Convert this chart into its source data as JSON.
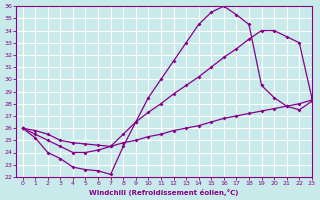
{
  "xlabel": "Windchill (Refroidissement éolien,°C)",
  "xlim": [
    -0.5,
    23
  ],
  "ylim": [
    22,
    36
  ],
  "xticks": [
    0,
    1,
    2,
    3,
    4,
    5,
    6,
    7,
    8,
    9,
    10,
    11,
    12,
    13,
    14,
    15,
    16,
    17,
    18,
    19,
    20,
    21,
    22,
    23
  ],
  "yticks": [
    22,
    23,
    24,
    25,
    26,
    27,
    28,
    29,
    30,
    31,
    32,
    33,
    34,
    35,
    36
  ],
  "background_color": "#c8eaea",
  "grid_color": "#ffffff",
  "line_color": "#880088",
  "line1_x": [
    0,
    1,
    2,
    3,
    4,
    5,
    6,
    7,
    8,
    9,
    10,
    11,
    12,
    13,
    14,
    15,
    16,
    17,
    18,
    19,
    20,
    21,
    22,
    23
  ],
  "line1_y": [
    26.0,
    25.2,
    24.0,
    23.5,
    22.8,
    22.6,
    22.5,
    22.2,
    24.5,
    26.5,
    28.5,
    30.0,
    31.5,
    33.0,
    34.5,
    35.5,
    36.0,
    35.3,
    34.5,
    29.5,
    28.5,
    27.8,
    27.5,
    28.2
  ],
  "line2_x": [
    0,
    1,
    2,
    3,
    4,
    5,
    6,
    7,
    8,
    9,
    10,
    11,
    12,
    13,
    14,
    15,
    16,
    17,
    18,
    19,
    20,
    21,
    22,
    23
  ],
  "line2_y": [
    26.0,
    25.5,
    25.0,
    24.5,
    24.0,
    24.0,
    24.2,
    24.5,
    25.5,
    26.5,
    27.3,
    28.0,
    28.8,
    29.5,
    30.2,
    31.0,
    31.8,
    32.5,
    33.3,
    34.0,
    34.0,
    33.5,
    33.0,
    28.5
  ],
  "line3_x": [
    0,
    1,
    2,
    3,
    4,
    5,
    6,
    7,
    8,
    9,
    10,
    11,
    12,
    13,
    14,
    15,
    16,
    17,
    18,
    19,
    20,
    21,
    22,
    23
  ],
  "line3_y": [
    26.0,
    25.8,
    25.5,
    25.0,
    24.8,
    24.7,
    24.6,
    24.5,
    24.8,
    25.0,
    25.3,
    25.5,
    25.8,
    26.0,
    26.2,
    26.5,
    26.8,
    27.0,
    27.2,
    27.4,
    27.6,
    27.8,
    28.0,
    28.3
  ]
}
